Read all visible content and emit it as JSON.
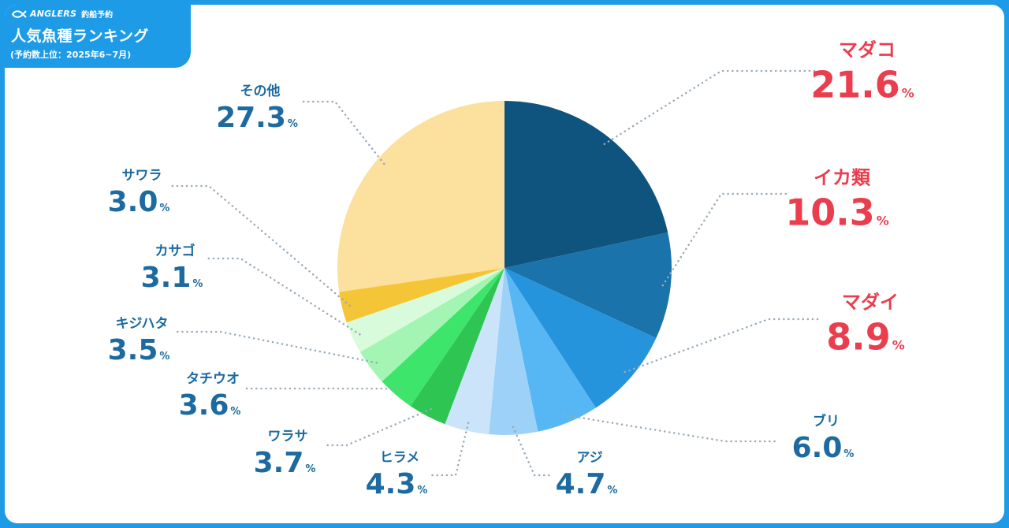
{
  "header": {
    "brand": "ANGLERS",
    "brand_sub": "釣船予約",
    "title": "人気魚種ランキング",
    "subtitle": "(予約数上位：2025年6~7月)"
  },
  "colors": {
    "frame": "#1e9be6",
    "highlight_text": "#ea3e4f",
    "normal_text": "#1c6aa0",
    "leader_line": "#9aaab8"
  },
  "chart_data": {
    "type": "pie",
    "unit": "%",
    "series": [
      {
        "name": "マダコ",
        "value": 21.6,
        "color": "#0f547e",
        "highlight": true
      },
      {
        "name": "イカ類",
        "value": 10.3,
        "color": "#1a73ab",
        "highlight": true
      },
      {
        "name": "マダイ",
        "value": 8.9,
        "color": "#2594dd",
        "highlight": true
      },
      {
        "name": "ブリ",
        "value": 6.0,
        "color": "#57b7f4",
        "highlight": false
      },
      {
        "name": "アジ",
        "value": 4.7,
        "color": "#9dd1f8",
        "highlight": false
      },
      {
        "name": "ヒラメ",
        "value": 4.3,
        "color": "#cbe4f9",
        "highlight": false
      },
      {
        "name": "ワラサ",
        "value": 3.7,
        "color": "#2ec553",
        "highlight": false
      },
      {
        "name": "タチウオ",
        "value": 3.6,
        "color": "#3de56a",
        "highlight": false
      },
      {
        "name": "キジハタ",
        "value": 3.5,
        "color": "#a4f5b3",
        "highlight": false
      },
      {
        "name": "カサゴ",
        "value": 3.1,
        "color": "#d8fbdc",
        "highlight": false
      },
      {
        "name": "サワラ",
        "value": 3.0,
        "color": "#f5c538",
        "highlight": false
      },
      {
        "name": "その他",
        "value": 27.3,
        "color": "#fce09e",
        "highlight": false
      }
    ]
  }
}
